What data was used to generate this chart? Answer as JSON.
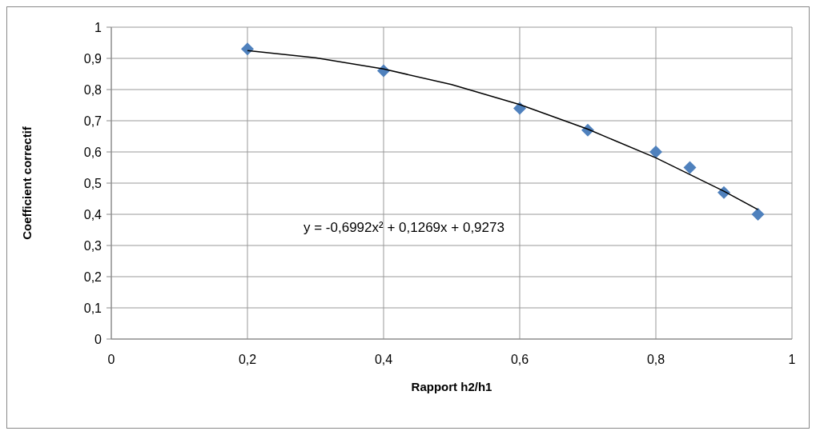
{
  "chart_data": {
    "type": "scatter",
    "xlabel": "Rapport h2/h1",
    "ylabel": "Coefficient correctif",
    "xlim": [
      0,
      1
    ],
    "xticks": [
      0,
      {
        "value": 0.2,
        "label": "0,2"
      },
      {
        "value": 0.4,
        "label": "0,4"
      },
      {
        "value": 0.6,
        "label": "0,6"
      },
      {
        "value": 0.8,
        "label": "0,8"
      },
      1
    ],
    "ylim": [
      0,
      1
    ],
    "yticks": [
      0,
      {
        "value": 0.1,
        "label": "0,1"
      },
      {
        "value": 0.2,
        "label": "0,2"
      },
      {
        "value": 0.3,
        "label": "0,3"
      },
      {
        "value": 0.4,
        "label": "0,4"
      },
      {
        "value": 0.5,
        "label": "0,5"
      },
      {
        "value": 0.6,
        "label": "0,6"
      },
      {
        "value": 0.7,
        "label": "0,7"
      },
      {
        "value": 0.8,
        "label": "0,8"
      },
      {
        "value": 0.9,
        "label": "0,9"
      },
      1
    ],
    "grid": true,
    "series": [
      {
        "marker": "diamond",
        "color": "#4f81bd",
        "x": [
          0.2,
          0.4,
          0.6,
          0.7,
          0.8,
          0.85,
          0.9,
          0.95
        ],
        "values": [
          0.93,
          0.86,
          0.74,
          0.67,
          0.6,
          0.55,
          0.47,
          0.4
        ]
      },
      {
        "type": "line",
        "marker": "none",
        "color": "#000000",
        "x": [
          0.2,
          0.3,
          0.4,
          0.5,
          0.6,
          0.7,
          0.8,
          0.9,
          0.95
        ],
        "values": [
          0.925,
          0.902,
          0.866,
          0.816,
          0.752,
          0.673,
          0.581,
          0.474,
          0.415
        ]
      }
    ],
    "annotations": [
      "y = -0,6992x² + 0,1269x + 0,9273"
    ]
  }
}
